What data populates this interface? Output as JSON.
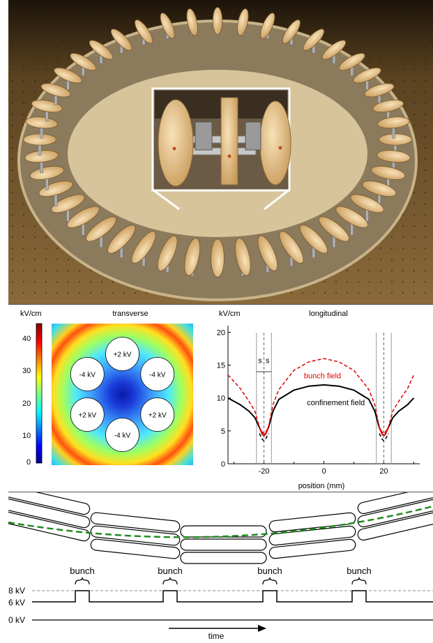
{
  "photo": {
    "subject": "ring-electrode-array-photo",
    "inset_subject": "zoomed-electrode-detail"
  },
  "transverse": {
    "title": "transverse",
    "colorbar_unit": "kV/cm",
    "colorbar_ticks": [
      "40",
      "30",
      "20",
      "10",
      "0"
    ],
    "electrodes": [
      {
        "label": "+2 kV"
      },
      {
        "label": "-4 kV"
      },
      {
        "label": "-4 kV"
      },
      {
        "label": "+2 kV"
      },
      {
        "label": "+2 kV"
      },
      {
        "label": "-4 kV"
      }
    ]
  },
  "chart_data": {
    "type": "line",
    "title": "longitudinal",
    "ylabel": "kV/cm",
    "xlabel": "position (mm)",
    "xlim": [
      -32,
      32
    ],
    "ylim": [
      0,
      21
    ],
    "xticks": [
      -20,
      0,
      20
    ],
    "yticks": [
      0,
      5,
      10,
      15,
      20
    ],
    "grid": false,
    "series": [
      {
        "name": "confinement field",
        "style": "solid",
        "color": "#000000",
        "x": [
          -32,
          -28,
          -25,
          -23,
          -21.5,
          -20.5,
          -20,
          -19.5,
          -18.5,
          -17,
          -15,
          -10,
          -5,
          0,
          5,
          10,
          15,
          17,
          18.5,
          19.5,
          20,
          20.5,
          21.5,
          23,
          25,
          28,
          30
        ],
        "y": [
          10,
          9,
          8,
          7,
          5.5,
          4.5,
          4.3,
          4.5,
          5.5,
          8,
          9.8,
          11.2,
          11.8,
          12,
          11.8,
          11.2,
          9.8,
          8,
          5.5,
          4.5,
          4.3,
          4.5,
          5.5,
          7,
          8,
          9,
          10
        ]
      },
      {
        "name": "bunch field",
        "style": "dashed",
        "color": "#dd0000",
        "x": [
          -32,
          -28,
          -25,
          -23,
          -21.5,
          -20.5,
          -20,
          -19.5,
          -18.5,
          -17,
          -15,
          -10,
          -5,
          0,
          5,
          10,
          15,
          17,
          18.5,
          19.5,
          20,
          20.5,
          21.5,
          23,
          25,
          28,
          30
        ],
        "y": [
          13.5,
          11.5,
          9.5,
          8,
          5.5,
          4.8,
          4.6,
          4.8,
          5.5,
          9,
          11.3,
          14.2,
          15.5,
          16,
          15.5,
          14.2,
          11.3,
          9,
          5.5,
          4.8,
          4.6,
          4.8,
          5.5,
          8,
          9.5,
          11.5,
          13.5
        ]
      },
      {
        "name": "",
        "style": "dashed",
        "color": "#000000",
        "x": [
          -21.5,
          -20.5,
          -20,
          -19.5,
          -18.5,
          18.5,
          19.5,
          20,
          20.5,
          21.5
        ],
        "y": [
          4.6,
          3.7,
          3.5,
          3.7,
          4.6,
          4.6,
          3.7,
          3.5,
          3.7,
          4.6
        ]
      }
    ],
    "annotations": [
      {
        "text": "bunch field",
        "color": "#dd0000"
      },
      {
        "text": "confinement field",
        "color": "#000000"
      },
      {
        "text": "s"
      },
      {
        "text": "s"
      }
    ],
    "vlines_solid": [
      -22.5,
      -17.5,
      17.5,
      22.5
    ],
    "vlines_dashed": [
      -20,
      20
    ]
  },
  "timing": {
    "levels": [
      "8 kV",
      "6 kV",
      "0 kV"
    ],
    "bunch_label": "bunch",
    "time_label": "time"
  }
}
